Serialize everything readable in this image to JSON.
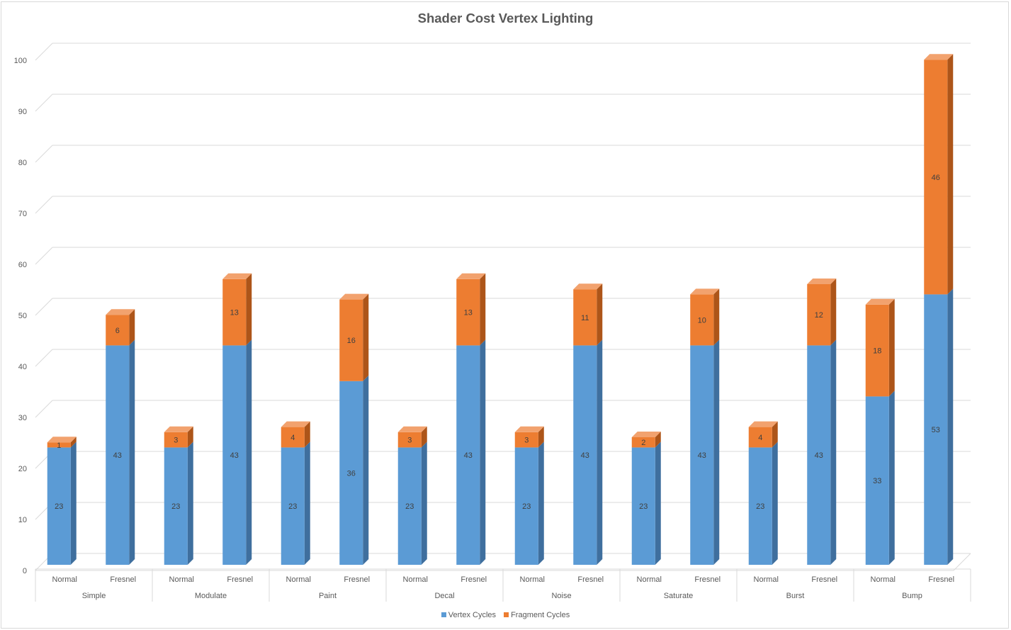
{
  "chart_data": {
    "type": "bar",
    "stacked": true,
    "three_d": true,
    "title": "Shader Cost Vertex Lighting",
    "ylim": [
      0,
      100
    ],
    "yticks": [
      0,
      10,
      20,
      30,
      40,
      50,
      60,
      70,
      80,
      90,
      100
    ],
    "grid": true,
    "legend_position": "bottom",
    "groups": [
      "Simple",
      "Modulate",
      "Paint",
      "Decal",
      "Noise",
      "Saturate",
      "Burst",
      "Bump"
    ],
    "subcategories": [
      "Normal",
      "Fresnel"
    ],
    "series": [
      {
        "name": "Vertex Cycles",
        "color": "#5b9bd5",
        "values": [
          23,
          43,
          23,
          43,
          23,
          36,
          23,
          43,
          23,
          43,
          23,
          43,
          23,
          43,
          33,
          53
        ]
      },
      {
        "name": "Fragment Cycles",
        "color": "#ed7d31",
        "values": [
          1,
          6,
          3,
          13,
          4,
          16,
          3,
          13,
          3,
          11,
          2,
          10,
          4,
          12,
          18,
          46
        ]
      }
    ]
  }
}
